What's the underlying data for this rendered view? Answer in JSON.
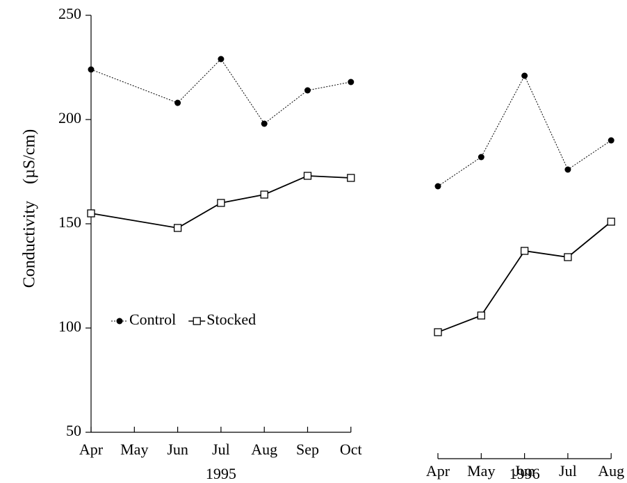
{
  "chart_data": [
    {
      "type": "line",
      "ylabel": "Conductivity (µS/cm)",
      "xlabel": "1995",
      "categories": [
        "Apr",
        "May",
        "Jun",
        "Jul",
        "Aug",
        "Sep",
        "Oct"
      ],
      "ylim": [
        50,
        250
      ],
      "yticks": [
        50,
        100,
        150,
        200,
        250
      ],
      "legend": "center-left",
      "series": [
        {
          "name": "Control",
          "color": "#000000",
          "marker": "filled-circle",
          "linestyle": "dotted",
          "x": [
            "Apr",
            "Jun",
            "Jul",
            "Aug",
            "Sep",
            "Oct"
          ],
          "values": [
            224,
            208,
            229,
            198,
            214,
            218
          ]
        },
        {
          "name": "Stocked",
          "color": "#000000",
          "marker": "open-square",
          "linestyle": "solid",
          "x": [
            "Apr",
            "Jun",
            "Jul",
            "Aug",
            "Sep",
            "Oct"
          ],
          "values": [
            155,
            148,
            160,
            164,
            173,
            172
          ]
        }
      ]
    },
    {
      "type": "line",
      "xlabel": "1996",
      "categories": [
        "Apr",
        "May",
        "Jun",
        "Jul",
        "Aug"
      ],
      "ylim": [
        50,
        250
      ],
      "series": [
        {
          "name": "Control",
          "color": "#000000",
          "marker": "filled-circle",
          "linestyle": "dotted",
          "x": [
            "Apr",
            "May",
            "Jun",
            "Jul",
            "Aug"
          ],
          "values": [
            168,
            182,
            221,
            176,
            190
          ]
        },
        {
          "name": "Stocked",
          "color": "#000000",
          "marker": "open-square",
          "linestyle": "solid",
          "x": [
            "Apr",
            "May",
            "Jun",
            "Jul",
            "Aug"
          ],
          "values": [
            98,
            106,
            137,
            134,
            151
          ]
        }
      ]
    }
  ]
}
